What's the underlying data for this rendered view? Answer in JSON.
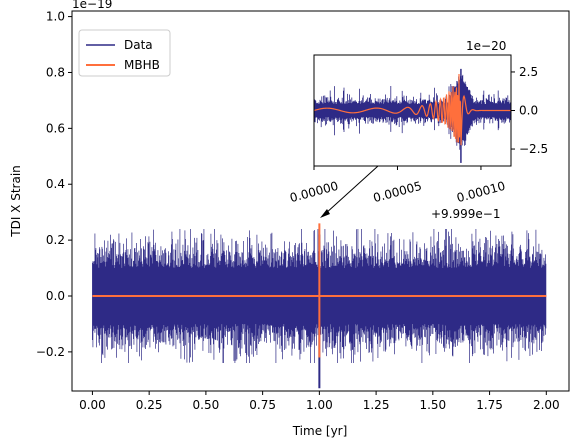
{
  "chart_data": [
    {
      "type": "line",
      "xlabel": "Time [yr]",
      "ylabel": "TDI X Strain",
      "offset_text": "1e−19",
      "xlim": [
        -0.09,
        2.1
      ],
      "ylim": [
        -0.34,
        1.02
      ],
      "x_ticks": [
        0.0,
        0.25,
        0.5,
        0.75,
        1.0,
        1.25,
        1.5,
        1.75,
        2.0
      ],
      "x_tick_labels": [
        "0.00",
        "0.25",
        "0.50",
        "0.75",
        "1.00",
        "1.25",
        "1.50",
        "1.75",
        "2.00"
      ],
      "y_ticks": [
        -0.2,
        0.0,
        0.2,
        0.4,
        0.6,
        0.8,
        1.0
      ],
      "y_tick_labels": [
        "−0.2",
        "0.0",
        "0.2",
        "0.4",
        "0.6",
        "0.8",
        "1.0"
      ],
      "legend": {
        "placement": "top-left",
        "entries": [
          "Data",
          "MBHB"
        ]
      },
      "series": [
        {
          "name": "Data",
          "color": "#2e2a86",
          "description_values": {
            "x_range": [
              0.0,
              2.0
            ],
            "noise_envelope": [
              -0.18,
              0.18
            ],
            "spike_at_x": 1.0,
            "spike_min": -0.33,
            "spike_max": 0.22
          }
        },
        {
          "name": "MBHB",
          "color": "#ff6f3c",
          "description_values": {
            "x_range": [
              0.0,
              2.0
            ],
            "baseline": 0.0,
            "spike_at_x": 1.0,
            "spike_max": 0.26,
            "spike_min": -0.22
          }
        }
      ],
      "annotation": {
        "arrow_target": {
          "x": 1.0,
          "y": 0.3
        }
      }
    },
    {
      "type": "line",
      "role": "inset",
      "offset_text": "1e−20",
      "x_offset_text": "+9.999e−1",
      "x_ticks": [
        0.0,
        5e-05,
        0.0001
      ],
      "x_tick_labels": [
        "0.00000",
        "0.00005",
        "0.00010"
      ],
      "xlim": [
        0.0,
        0.000118
      ],
      "y_ticks": [
        -2.5,
        0.0,
        2.5
      ],
      "y_tick_labels": [
        "−2.5",
        "0.0",
        "2.5"
      ],
      "ylim": [
        -3.6,
        3.6
      ],
      "series": [
        {
          "name": "Data",
          "color": "#2e2a86",
          "noise_envelope": [
            -0.8,
            0.8
          ],
          "burst_center_x": 8.8e-05,
          "burst_min": -3.4,
          "burst_max": 2.7
        },
        {
          "name": "MBHB",
          "color": "#ff6f3c",
          "burst_center_x": 8.8e-05,
          "burst_min": -2.4,
          "burst_max": 2.8
        }
      ]
    }
  ]
}
